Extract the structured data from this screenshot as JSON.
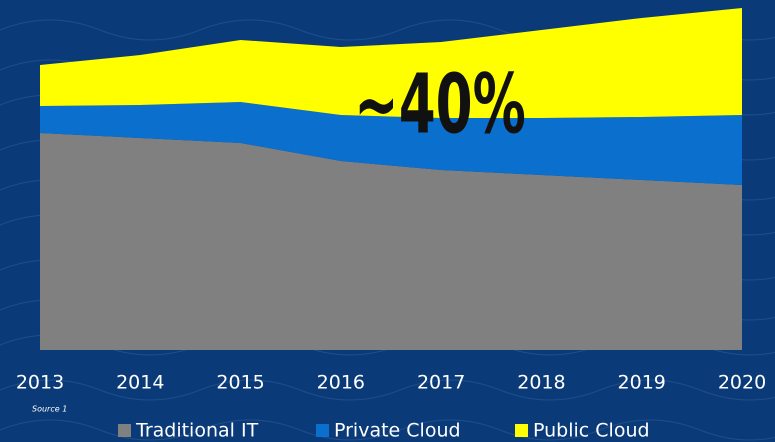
{
  "chart_data": {
    "type": "area",
    "categories": [
      "2013",
      "2014",
      "2015",
      "2016",
      "2017",
      "2018",
      "2019",
      "2020"
    ],
    "series": [
      {
        "name": "Traditional IT",
        "color": "#808080",
        "values": [
          217,
          212,
          207,
          189,
          180,
          175,
          170,
          165
        ]
      },
      {
        "name": "Private Cloud",
        "color": "#0b6fce",
        "values": [
          27,
          33,
          41,
          46,
          52,
          57,
          63,
          70
        ]
      },
      {
        "name": "Public Cloud",
        "color": "#ffff00",
        "values": [
          41,
          50,
          62,
          68,
          76,
          88,
          99,
          107
        ]
      }
    ],
    "stacked": true,
    "ylim": [
      0,
      350
    ],
    "annotations": [
      {
        "text": "~40%"
      },
      {
        "text": "Source 1"
      }
    ]
  }
}
